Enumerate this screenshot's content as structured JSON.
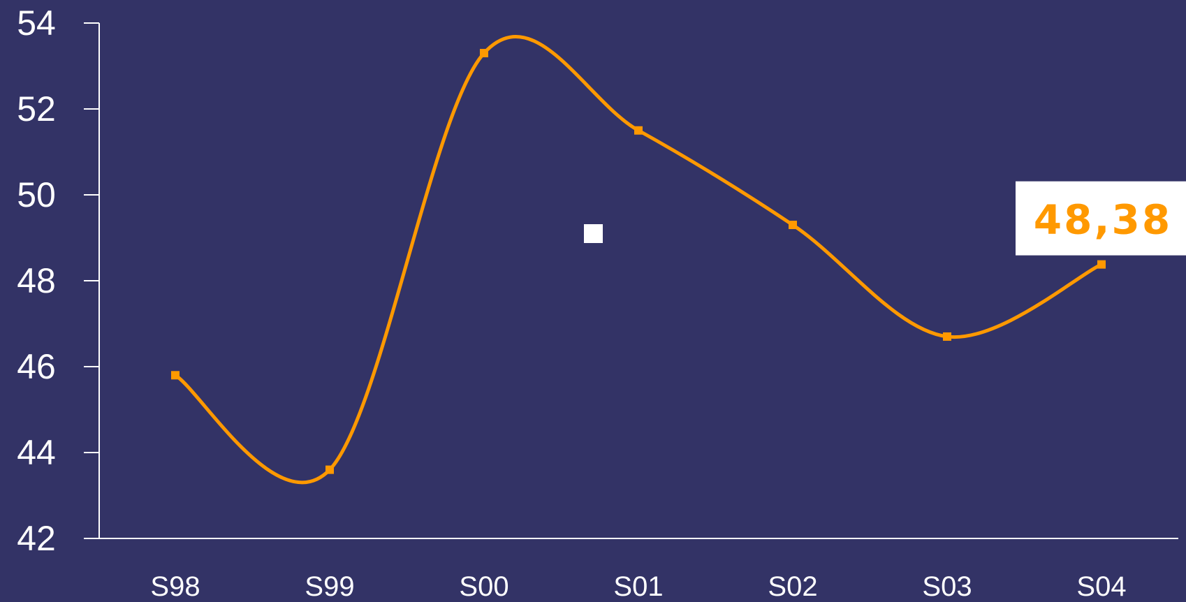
{
  "chart_data": {
    "type": "line",
    "title": "",
    "xlabel": "",
    "ylabel": "",
    "categories": [
      "S98",
      "S99",
      "S00",
      "S01",
      "S02",
      "S03",
      "S04"
    ],
    "series": [
      {
        "values": [
          45.8,
          43.6,
          53.3,
          51.5,
          49.3,
          46.7,
          48.38
        ],
        "color": "#ff9900",
        "smooth": true
      }
    ],
    "ylim": [
      42,
      54
    ],
    "yticks": [
      "42",
      "44",
      "46",
      "48",
      "50",
      "52",
      "54"
    ],
    "grid": false,
    "legend": "none",
    "callout": {
      "text": "48,38",
      "series_index": 0,
      "point_index": 6
    },
    "colors": {
      "background": "#333366",
      "axis": "#ffffff",
      "text": "#ffffff",
      "line": "#ff9900",
      "callout_bg": "#ffffff",
      "callout_text": "#ff9900",
      "marker_stray": "#ffffff"
    }
  }
}
